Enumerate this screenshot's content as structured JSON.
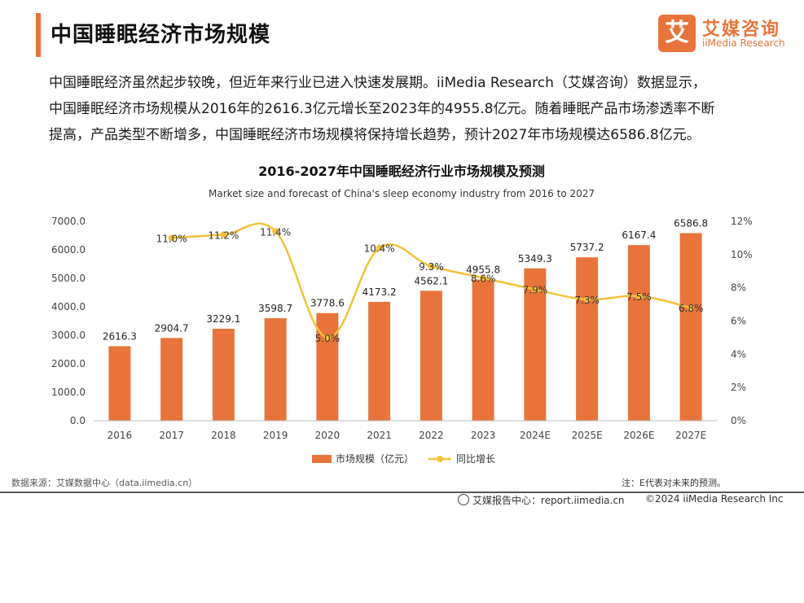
{
  "header": {
    "title": "中国睡眠经济市场规模",
    "logo_mark": "艾",
    "logo_cn": "艾媒咨询",
    "logo_en": "iiMedia Research"
  },
  "intro": {
    "line1": "中国睡眠经济虽然起步较晚，但近年来行业已进入快速发展期。iiMedia Research（艾媒咨询）数据显示，",
    "line2": "中国睡眠经济市场规模从2016年的2616.3亿元增长至2023年的4955.8亿元。随着睡眠产品市场渗透率不断",
    "line3": "提高，产品类型不断增多，中国睡眠经济市场规模将保持增长趋势，预计2027年市场规模达6586.8亿元。"
  },
  "chart_data": {
    "type": "bar",
    "title": "2016-2027年中国睡眠经济行业市场规模及预测",
    "subtitle": "Market size and forecast of China's sleep economy industry from 2016 to 2027",
    "categories": [
      "2016",
      "2017",
      "2018",
      "2019",
      "2020",
      "2021",
      "2022",
      "2023",
      "2024E",
      "2025E",
      "2026E",
      "2027E"
    ],
    "series": [
      {
        "name": "市场规模（亿元）",
        "type": "bar",
        "axis": "left",
        "values": [
          2616.3,
          2904.7,
          3229.1,
          3598.7,
          3778.6,
          4173.2,
          4562.1,
          4955.8,
          5349.3,
          5737.2,
          6167.4,
          6586.8
        ],
        "labels": [
          "2616.3",
          "2904.7",
          "3229.1",
          "3598.7",
          "3778.6",
          "4173.2",
          "4562.1",
          "4955.8",
          "5349.3",
          "5737.2",
          "6167.4",
          "6586.8"
        ]
      },
      {
        "name": "同比增长",
        "type": "line",
        "axis": "right",
        "values": [
          null,
          11.0,
          11.2,
          11.4,
          5.0,
          10.4,
          9.3,
          8.6,
          7.9,
          7.3,
          7.5,
          6.8
        ],
        "labels": [
          "",
          "11.0%",
          "11.2%",
          "11.4%",
          "5.0%",
          "10.4%",
          "9.3%",
          "8.6%",
          "7.9%",
          "7.3%",
          "7.5%",
          "6.8%"
        ]
      }
    ],
    "y_left": {
      "min": 0,
      "max": 7000,
      "ticks": [
        "0.0",
        "1000.0",
        "2000.0",
        "3000.0",
        "4000.0",
        "5000.0",
        "6000.0",
        "7000.0"
      ]
    },
    "y_right": {
      "min": 0,
      "max": 12,
      "ticks": [
        "0%",
        "2%",
        "4%",
        "6%",
        "8%",
        "10%",
        "12%"
      ]
    },
    "legend": "bottom",
    "grid": false,
    "colors": {
      "bar": "#e8743b",
      "line": "#f3c13a"
    }
  },
  "footer": {
    "source": "数据来源：艾媒数据中心（data.iimedia.cn）",
    "note": "注：E代表对未来的预测。",
    "report": "艾媒报告中心：report.iimedia.cn",
    "copyright": "©2024  iiMedia Research Inc"
  }
}
